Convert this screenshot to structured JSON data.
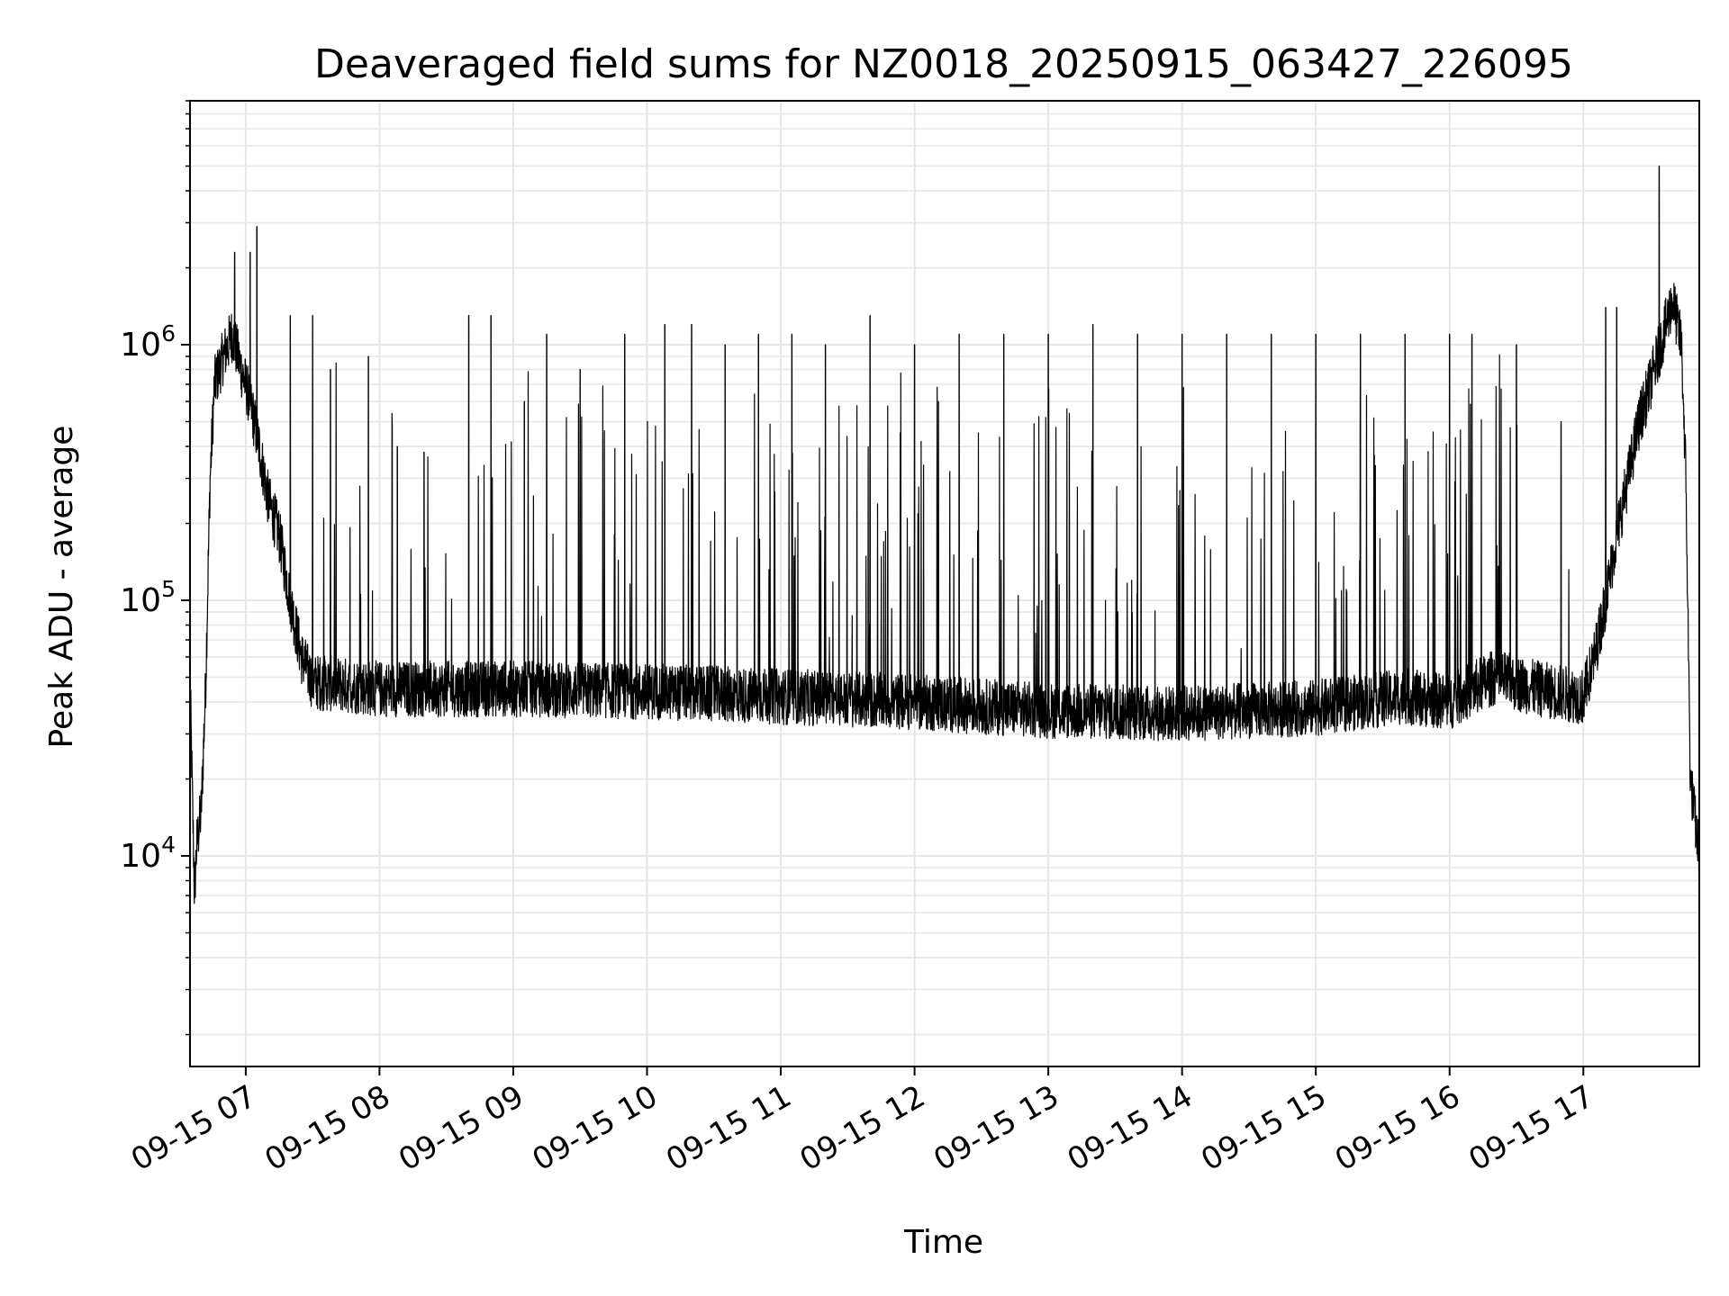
{
  "chart_data": {
    "type": "line",
    "title": "Deaveraged field sums for NZ0018_20250915_063427_226095",
    "xlabel": "Time",
    "ylabel": "Peak ADU - average",
    "yscale": "log",
    "ylim": [
      1500,
      9000000
    ],
    "xlim": [
      "2025-09-15 06:35",
      "2025-09-15 17:52"
    ],
    "grid": true,
    "line_color": "#000000",
    "grid_color": "#e6e6e6",
    "x_ticks": [
      {
        "value": "2025-09-15 07:00",
        "label": "09-15 07"
      },
      {
        "value": "2025-09-15 08:00",
        "label": "09-15 08"
      },
      {
        "value": "2025-09-15 09:00",
        "label": "09-15 09"
      },
      {
        "value": "2025-09-15 10:00",
        "label": "09-15 10"
      },
      {
        "value": "2025-09-15 11:00",
        "label": "09-15 11"
      },
      {
        "value": "2025-09-15 12:00",
        "label": "09-15 12"
      },
      {
        "value": "2025-09-15 13:00",
        "label": "09-15 13"
      },
      {
        "value": "2025-09-15 14:00",
        "label": "09-15 14"
      },
      {
        "value": "2025-09-15 15:00",
        "label": "09-15 15"
      },
      {
        "value": "2025-09-15 16:00",
        "label": "09-15 16"
      },
      {
        "value": "2025-09-15 17:00",
        "label": "09-15 17"
      }
    ],
    "y_ticks": [
      {
        "value": 10000,
        "base": "10",
        "exp": "4"
      },
      {
        "value": 100000,
        "base": "10",
        "exp": "5"
      },
      {
        "value": 1000000,
        "base": "10",
        "exp": "6"
      }
    ],
    "series": [
      {
        "points": [
          [
            "2025-09-15 06:35",
            50000
          ],
          [
            "2025-09-15 06:36",
            18000
          ],
          [
            "2025-09-15 06:37",
            7000
          ],
          [
            "2025-09-15 06:38",
            11000
          ],
          [
            "2025-09-15 06:40",
            15000
          ],
          [
            "2025-09-15 06:42",
            45000
          ],
          [
            "2025-09-15 06:44",
            300000
          ],
          [
            "2025-09-15 06:46",
            700000
          ],
          [
            "2025-09-15 06:50",
            900000
          ],
          [
            "2025-09-15 06:54",
            1100000
          ],
          [
            "2025-09-15 06:58",
            800000
          ],
          [
            "2025-09-15 07:02",
            600000
          ],
          [
            "2025-09-15 07:06",
            400000
          ],
          [
            "2025-09-15 07:10",
            250000
          ],
          [
            "2025-09-15 07:15",
            180000
          ],
          [
            "2025-09-15 07:20",
            100000
          ],
          [
            "2025-09-15 07:25",
            60000
          ],
          [
            "2025-09-15 07:30",
            48000
          ],
          [
            "2025-09-15 08:00",
            45000
          ],
          [
            "2025-09-15 09:00",
            45000
          ],
          [
            "2025-09-15 10:00",
            44000
          ],
          [
            "2025-09-15 11:00",
            42000
          ],
          [
            "2025-09-15 12:00",
            40000
          ],
          [
            "2025-09-15 13:00",
            37000
          ],
          [
            "2025-09-15 14:00",
            36000
          ],
          [
            "2025-09-15 15:00",
            38000
          ],
          [
            "2025-09-15 15:40",
            42000
          ],
          [
            "2025-09-15 16:00",
            40000
          ],
          [
            "2025-09-15 16:20",
            50000
          ],
          [
            "2025-09-15 16:40",
            45000
          ],
          [
            "2025-09-15 17:00",
            42000
          ],
          [
            "2025-09-15 17:05",
            60000
          ],
          [
            "2025-09-15 17:10",
            100000
          ],
          [
            "2025-09-15 17:15",
            180000
          ],
          [
            "2025-09-15 17:20",
            300000
          ],
          [
            "2025-09-15 17:25",
            500000
          ],
          [
            "2025-09-15 17:30",
            700000
          ],
          [
            "2025-09-15 17:36",
            1100000
          ],
          [
            "2025-09-15 17:40",
            1500000
          ],
          [
            "2025-09-15 17:44",
            1000000
          ],
          [
            "2025-09-15 17:46",
            300000
          ],
          [
            "2025-09-15 17:48",
            20000
          ],
          [
            "2025-09-15 17:52",
            10000
          ]
        ],
        "spikes": [
          [
            "2025-09-15 06:55",
            2300000
          ],
          [
            "2025-09-15 07:02",
            2300000
          ],
          [
            "2025-09-15 07:05",
            2900000
          ],
          [
            "2025-09-15 07:20",
            1300000
          ],
          [
            "2025-09-15 07:30",
            1300000
          ],
          [
            "2025-09-15 07:38",
            800000
          ],
          [
            "2025-09-15 07:55",
            900000
          ],
          [
            "2025-09-15 08:08",
            400000
          ],
          [
            "2025-09-15 08:20",
            380000
          ],
          [
            "2025-09-15 08:40",
            1300000
          ],
          [
            "2025-09-15 08:50",
            1300000
          ],
          [
            "2025-09-15 09:05",
            600000
          ],
          [
            "2025-09-15 09:15",
            1100000
          ],
          [
            "2025-09-15 09:30",
            800000
          ],
          [
            "2025-09-15 09:50",
            1100000
          ],
          [
            "2025-09-15 10:08",
            1200000
          ],
          [
            "2025-09-15 10:20",
            1200000
          ],
          [
            "2025-09-15 10:35",
            1000000
          ],
          [
            "2025-09-15 10:50",
            1100000
          ],
          [
            "2025-09-15 11:05",
            1100000
          ],
          [
            "2025-09-15 11:20",
            1000000
          ],
          [
            "2025-09-15 11:40",
            1300000
          ],
          [
            "2025-09-15 12:00",
            1000000
          ],
          [
            "2025-09-15 12:20",
            1100000
          ],
          [
            "2025-09-15 12:40",
            1100000
          ],
          [
            "2025-09-15 13:00",
            1100000
          ],
          [
            "2025-09-15 13:20",
            1200000
          ],
          [
            "2025-09-15 13:40",
            1100000
          ],
          [
            "2025-09-15 14:00",
            1100000
          ],
          [
            "2025-09-15 14:20",
            1100000
          ],
          [
            "2025-09-15 14:40",
            1100000
          ],
          [
            "2025-09-15 15:00",
            1100000
          ],
          [
            "2025-09-15 15:20",
            1100000
          ],
          [
            "2025-09-15 15:40",
            1100000
          ],
          [
            "2025-09-15 16:00",
            1100000
          ],
          [
            "2025-09-15 16:10",
            1100000
          ],
          [
            "2025-09-15 16:30",
            1000000
          ],
          [
            "2025-09-15 16:50",
            500000
          ],
          [
            "2025-09-15 17:10",
            1400000
          ],
          [
            "2025-09-15 17:15",
            1400000
          ],
          [
            "2025-09-15 17:34",
            5000000
          ]
        ]
      }
    ]
  }
}
